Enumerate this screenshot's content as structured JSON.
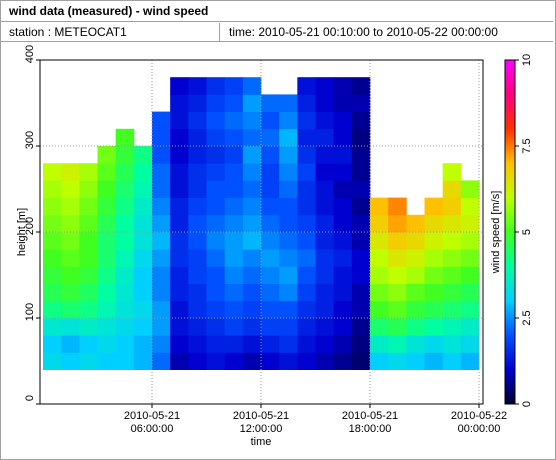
{
  "chart_data": {
    "type": "heatmap",
    "title": "wind data (measured) - wind speed",
    "station": "station : METEOCAT1",
    "time_range": "time: 2010-05-21 00:10:00 to 2010-05-22 00:00:00",
    "xlabel": "time",
    "ylabel": "height [m]",
    "colorbar_label": "wind speed [m/s]",
    "xlim": [
      "2010-05-21 00:00:00",
      "2010-05-22 00:00:00"
    ],
    "xticks": [
      "2010-05-21 06:00:00",
      "2010-05-21 12:00:00",
      "2010-05-21 18:00:00",
      "2010-05-22 00:00:00"
    ],
    "ylim": [
      0,
      400
    ],
    "yticks": [
      0,
      100,
      200,
      300,
      400
    ],
    "grid": true,
    "clim": [
      0,
      10
    ],
    "cticks": [
      0,
      2.5,
      5,
      7.5,
      10
    ],
    "colormap": [
      "#000030",
      "#0000d0",
      "#0050ff",
      "#00d0ff",
      "#00ffa0",
      "#40ff20",
      "#c0ff00",
      "#ffc000",
      "#ff3000",
      "#ff0080",
      "#ff00ff"
    ],
    "x": [
      "2010-05-21 00:00:00",
      "2010-05-21 01:00:00",
      "2010-05-21 02:00:00",
      "2010-05-21 03:00:00",
      "2010-05-21 04:00:00",
      "2010-05-21 05:00:00",
      "2010-05-21 06:00:00",
      "2010-05-21 07:00:00",
      "2010-05-21 08:00:00",
      "2010-05-21 09:00:00",
      "2010-05-21 10:00:00",
      "2010-05-21 11:00:00",
      "2010-05-21 12:00:00",
      "2010-05-21 13:00:00",
      "2010-05-21 14:00:00",
      "2010-05-21 15:00:00",
      "2010-05-21 16:00:00",
      "2010-05-21 17:00:00",
      "2010-05-21 18:00:00",
      "2010-05-21 19:00:00",
      "2010-05-21 20:00:00",
      "2010-05-21 21:00:00",
      "2010-05-21 22:00:00",
      "2010-05-21 23:00:00"
    ],
    "y": [
      50,
      70,
      90,
      110,
      130,
      150,
      170,
      190,
      210,
      230,
      250,
      270,
      290,
      310,
      330,
      350,
      370
    ],
    "z": [
      [
        3.2,
        3.0,
        3.5,
        4.2,
        4.6,
        4.8,
        5.0,
        5.2,
        5.4,
        5.6,
        5.8,
        6.0,
        null,
        null,
        null,
        null,
        null
      ],
      [
        3.0,
        2.8,
        3.4,
        4.4,
        4.8,
        5.0,
        5.2,
        5.4,
        5.6,
        5.8,
        6.0,
        6.2,
        null,
        null,
        null,
        null,
        null
      ],
      [
        3.2,
        3.0,
        3.6,
        4.2,
        4.5,
        4.8,
        5.0,
        5.0,
        5.2,
        5.4,
        5.6,
        5.8,
        null,
        null,
        null,
        null,
        null
      ],
      [
        3.0,
        3.2,
        3.4,
        3.8,
        4.0,
        4.2,
        4.4,
        4.4,
        4.6,
        4.8,
        5.0,
        5.2,
        5.4,
        null,
        null,
        null,
        null
      ],
      [
        3.0,
        3.0,
        3.2,
        3.4,
        3.5,
        3.6,
        3.8,
        4.0,
        4.0,
        4.2,
        4.4,
        4.6,
        4.8,
        5.0,
        null,
        null,
        null
      ],
      [
        2.8,
        2.8,
        3.0,
        3.2,
        3.0,
        3.0,
        3.2,
        3.4,
        3.4,
        3.6,
        3.8,
        4.0,
        4.2,
        null,
        null,
        null,
        null
      ],
      [
        2.2,
        2.4,
        2.6,
        2.6,
        2.4,
        2.4,
        2.6,
        2.8,
        2.6,
        2.4,
        2.2,
        2.2,
        2.0,
        2.0,
        2.0,
        null,
        null
      ],
      [
        0.8,
        1.0,
        1.2,
        1.2,
        1.4,
        1.4,
        1.6,
        1.6,
        1.4,
        1.4,
        1.2,
        1.2,
        1.0,
        1.0,
        1.2,
        1.2,
        1.0
      ],
      [
        1.0,
        1.2,
        1.4,
        1.6,
        1.6,
        1.8,
        1.8,
        2.0,
        2.0,
        1.8,
        1.6,
        1.6,
        1.4,
        1.4,
        1.6,
        1.4,
        1.2
      ],
      [
        1.2,
        1.4,
        1.6,
        1.8,
        2.0,
        2.0,
        2.2,
        2.4,
        2.2,
        2.0,
        2.0,
        1.8,
        1.6,
        1.8,
        2.0,
        1.8,
        1.6
      ],
      [
        1.0,
        1.4,
        1.8,
        2.0,
        2.2,
        2.4,
        2.6,
        2.6,
        2.4,
        2.2,
        2.0,
        2.0,
        1.8,
        2.0,
        2.2,
        2.0,
        1.8
      ],
      [
        0.8,
        1.2,
        1.6,
        1.8,
        2.0,
        2.2,
        2.4,
        2.8,
        2.6,
        2.4,
        2.2,
        2.4,
        2.6,
        2.2,
        2.4,
        2.6,
        2.2
      ],
      [
        1.0,
        1.4,
        1.8,
        2.0,
        2.2,
        2.4,
        2.6,
        2.4,
        2.2,
        2.0,
        1.8,
        1.8,
        2.0,
        2.2,
        2.0,
        2.2,
        null
      ],
      [
        1.2,
        1.6,
        1.8,
        2.0,
        2.4,
        2.6,
        2.4,
        2.2,
        2.0,
        2.0,
        2.2,
        2.4,
        2.6,
        2.8,
        2.4,
        2.2,
        null
      ],
      [
        1.0,
        1.2,
        1.4,
        1.6,
        1.8,
        2.0,
        2.2,
        2.0,
        1.8,
        1.6,
        1.6,
        1.8,
        1.6,
        1.4,
        1.6,
        1.4,
        1.2
      ],
      [
        0.8,
        1.0,
        1.2,
        1.4,
        1.4,
        1.6,
        1.6,
        1.4,
        1.4,
        1.2,
        1.2,
        1.0,
        1.2,
        1.4,
        1.2,
        1.0,
        1.0
      ],
      [
        0.6,
        0.8,
        1.0,
        1.0,
        1.2,
        1.2,
        1.4,
        1.2,
        1.0,
        1.0,
        0.8,
        1.0,
        1.2,
        1.0,
        1.0,
        0.8,
        0.8
      ],
      [
        0.4,
        0.5,
        0.6,
        0.8,
        0.8,
        1.0,
        1.0,
        0.8,
        0.8,
        0.6,
        0.8,
        0.6,
        0.6,
        0.5,
        0.6,
        0.8,
        0.6
      ],
      [
        3.0,
        3.6,
        4.4,
        5.0,
        5.4,
        5.8,
        6.0,
        6.4,
        6.8,
        7.0,
        null,
        null,
        null,
        null,
        null,
        null,
        null
      ],
      [
        3.2,
        3.8,
        4.6,
        5.2,
        5.6,
        6.0,
        6.4,
        6.8,
        7.2,
        7.4,
        null,
        null,
        null,
        null,
        null,
        null,
        null
      ],
      [
        3.0,
        3.4,
        4.2,
        4.8,
        5.2,
        5.8,
        6.2,
        6.6,
        7.0,
        null,
        null,
        null,
        null,
        null,
        null,
        null,
        null
      ],
      [
        2.8,
        3.2,
        4.0,
        4.6,
        5.0,
        5.4,
        5.8,
        6.2,
        6.6,
        7.0,
        null,
        null,
        null,
        null,
        null,
        null,
        null
      ],
      [
        3.0,
        3.4,
        3.8,
        4.4,
        4.8,
        5.2,
        5.6,
        6.0,
        6.4,
        6.8,
        6.6,
        6.0,
        null,
        null,
        null,
        null,
        null
      ],
      [
        2.8,
        3.2,
        3.6,
        4.2,
        4.6,
        5.0,
        5.4,
        5.8,
        6.2,
        6.0,
        5.6,
        null,
        null,
        null,
        null,
        null,
        null
      ]
    ]
  }
}
